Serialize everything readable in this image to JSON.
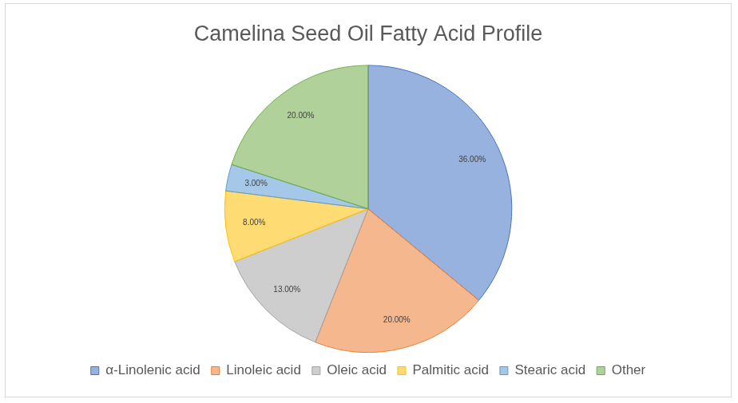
{
  "chart_data": {
    "type": "pie",
    "title": "Camelina Seed Oil Fatty Acid Profile",
    "categories": [
      "α-Linolenic acid",
      "Linoleic acid",
      "Oleic acid",
      "Palmitic acid",
      "Stearic acid",
      "Other"
    ],
    "values": [
      36,
      20,
      13,
      8,
      3,
      20
    ],
    "value_labels": [
      "36.00%",
      "20.00%",
      "13.00%",
      "8.00%",
      "3.00%",
      "20.00%"
    ],
    "colors": [
      "#4472c4",
      "#ed7d31",
      "#a5a5a5",
      "#ffc000",
      "#5b9bd5",
      "#70ad47"
    ],
    "data_labels": true,
    "legend": "bottom"
  }
}
